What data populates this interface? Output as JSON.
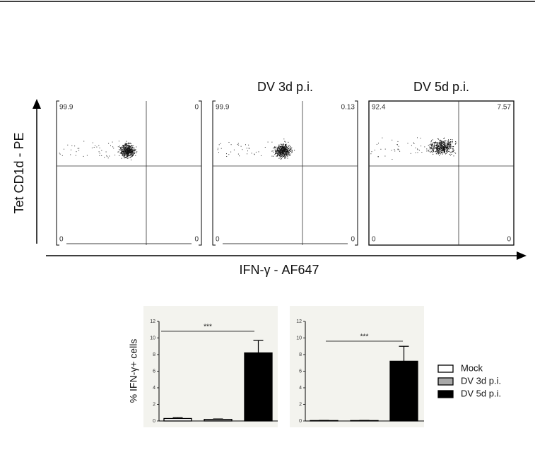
{
  "flow": {
    "x_label": "IFN-γ - AF647",
    "y_label": "Tet CD1d - PE",
    "panels": [
      {
        "quadrants": {
          "upper_left": 99.9,
          "upper_right": 0,
          "lower_left": 0,
          "lower_right": 0
        }
      },
      {
        "title": "DV 3d p.i.",
        "quadrants": {
          "upper_left": 99.9,
          "upper_right": 0.13,
          "lower_left": 0,
          "lower_right": 0
        }
      },
      {
        "title": "DV 5d p.i.",
        "quadrants": {
          "upper_left": 92.4,
          "upper_right": 7.57,
          "lower_left": 0,
          "lower_right": 0
        }
      }
    ]
  },
  "legend": [
    {
      "name": "Mock",
      "color": "#ffffff"
    },
    {
      "name": "DV 3d p.i.",
      "color": "#a8a8a8"
    },
    {
      "name": "DV 5d p.i.",
      "color": "#000000"
    }
  ],
  "chart_data": [
    {
      "type": "bar",
      "ylabel": "% IFN-γ+ cells",
      "values": [
        0.3,
        0.2,
        8.2
      ],
      "errors": [
        0.1,
        0.05,
        1.5
      ],
      "ylim": [
        0,
        12
      ],
      "yticks": [
        0,
        2,
        4,
        6,
        8,
        10,
        12
      ],
      "annotation": "***"
    },
    {
      "type": "bar",
      "values": [
        0.05,
        0.05,
        7.2
      ],
      "errors": [
        0.02,
        0.02,
        1.8
      ],
      "ylim": [
        0,
        12
      ],
      "yticks": [
        0,
        2,
        4,
        6,
        8,
        10,
        12
      ],
      "annotation": "***"
    }
  ]
}
